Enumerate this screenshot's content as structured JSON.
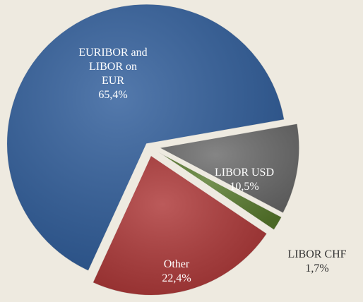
{
  "chart_data": {
    "type": "pie",
    "categories": [
      "EURIBOR and LIBOR on EUR",
      "LIBOR USD",
      "LIBOR CHF",
      "Other"
    ],
    "values": [
      65.4,
      10.5,
      1.7,
      22.4
    ],
    "value_labels": [
      "65,4%",
      "10,5%",
      "1,7%",
      "22,4%"
    ],
    "colors": [
      "#2e5c9a",
      "#6a6a6a",
      "#587a2c",
      "#ad3636"
    ]
  }
}
